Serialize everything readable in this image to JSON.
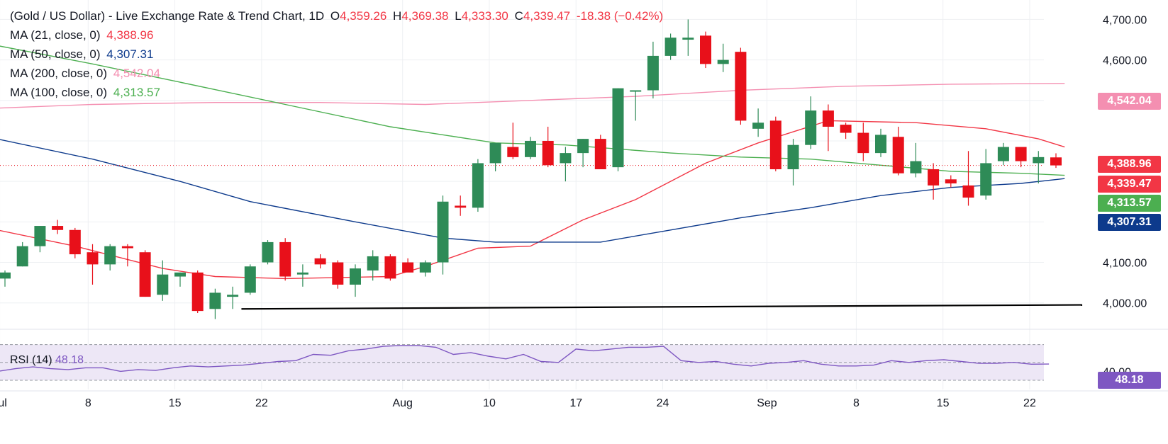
{
  "header": {
    "title": "(Gold / US Dollar) - Live Exchange Rate & Trend Chart, 1D",
    "o_label": "O",
    "o_value": "4,359.26",
    "h_label": "H",
    "h_value": "4,369.38",
    "l_label": "L",
    "l_value": "4,333.30",
    "c_label": "C",
    "c_value": "4,339.47",
    "change": "-18.38 (−0.42%)"
  },
  "ma_legend": [
    {
      "label": "MA (21, close, 0)",
      "value": "4,388.96",
      "color": "#f23645"
    },
    {
      "label": "MA (50, close, 0)",
      "value": "4,307.31",
      "color": "#0d3a8c"
    },
    {
      "label": "MA (200, close, 0)",
      "value": "4,542.04",
      "color": "#f48fb1"
    },
    {
      "label": "MA (100, close, 0)",
      "value": "4,313.57",
      "color": "#4caf50"
    }
  ],
  "rsi": {
    "label": "RSI (14)",
    "value": "48.18",
    "color": "#7e57c2"
  },
  "badges": [
    {
      "value": "4,542.04",
      "color": "#f48fb1"
    },
    {
      "value": "4,388.96",
      "color": "#f23645"
    },
    {
      "value": "4,339.47",
      "color": "#f23645"
    },
    {
      "value": "4,313.57",
      "color": "#4caf50"
    },
    {
      "value": "4,307.31",
      "color": "#0d3a8c"
    },
    {
      "value": "48.18",
      "color": "#7e57c2"
    }
  ],
  "colors": {
    "up": "#2e8b57",
    "down": "#e8101a",
    "grid": "#eef0f3",
    "rsi_band": "#ede7f6",
    "support": "#000000"
  },
  "chart_data": {
    "type": "candlestick",
    "title": "(Gold / US Dollar) - Live Exchange Rate & Trend Chart",
    "interval": "1D",
    "ylim": [
      3940,
      4720
    ],
    "yticks": [
      4000,
      4100,
      4200,
      4300,
      4400,
      4500,
      4600,
      4700
    ],
    "ytick_labels": [
      "4,000.00",
      "4,100.00",
      "4,200.00",
      "",
      "",
      "4,500.00",
      "4,600.00",
      "4,700.00"
    ],
    "xtick_labels": [
      "Jul",
      "8",
      "15",
      "22",
      "Aug",
      "10",
      "17",
      "24",
      "Sep",
      "8",
      "15",
      "22"
    ],
    "xtick_candle_index": [
      -0.3,
      4.75,
      9.7,
      14.65,
      22.7,
      27.65,
      32.6,
      37.55,
      43.5,
      48.6,
      53.55,
      58.5
    ],
    "candles": [
      {
        "o": 4060,
        "h": 4080,
        "l": 4040,
        "c": 4075
      },
      {
        "o": 4090,
        "h": 4150,
        "l": 4090,
        "c": 4140
      },
      {
        "o": 4140,
        "h": 4190,
        "l": 4125,
        "c": 4190
      },
      {
        "o": 4190,
        "h": 4205,
        "l": 4170,
        "c": 4180
      },
      {
        "o": 4180,
        "h": 4185,
        "l": 4110,
        "c": 4120
      },
      {
        "o": 4125,
        "h": 4145,
        "l": 4045,
        "c": 4095
      },
      {
        "o": 4095,
        "h": 4145,
        "l": 4080,
        "c": 4140
      },
      {
        "o": 4140,
        "h": 4145,
        "l": 4090,
        "c": 4135
      },
      {
        "o": 4125,
        "h": 4130,
        "l": 4015,
        "c": 4015
      },
      {
        "o": 4020,
        "h": 4105,
        "l": 4005,
        "c": 4070
      },
      {
        "o": 4065,
        "h": 4075,
        "l": 4040,
        "c": 4075
      },
      {
        "o": 4075,
        "h": 4080,
        "l": 3975,
        "c": 3980
      },
      {
        "o": 3985,
        "h": 4035,
        "l": 3960,
        "c": 4025
      },
      {
        "o": 4015,
        "h": 4040,
        "l": 3985,
        "c": 4020
      },
      {
        "o": 4025,
        "h": 4095,
        "l": 4020,
        "c": 4090
      },
      {
        "o": 4100,
        "h": 4155,
        "l": 4095,
        "c": 4150
      },
      {
        "o": 4150,
        "h": 4160,
        "l": 4055,
        "c": 4065
      },
      {
        "o": 4070,
        "h": 4095,
        "l": 4040,
        "c": 4075
      },
      {
        "o": 4110,
        "h": 4120,
        "l": 4085,
        "c": 4095
      },
      {
        "o": 4100,
        "h": 4105,
        "l": 4035,
        "c": 4045
      },
      {
        "o": 4045,
        "h": 4095,
        "l": 4015,
        "c": 4085
      },
      {
        "o": 4080,
        "h": 4130,
        "l": 4055,
        "c": 4115
      },
      {
        "o": 4115,
        "h": 4120,
        "l": 4055,
        "c": 4060
      },
      {
        "o": 4100,
        "h": 4110,
        "l": 4080,
        "c": 4075
      },
      {
        "o": 4075,
        "h": 4105,
        "l": 4065,
        "c": 4100
      },
      {
        "o": 4100,
        "h": 4265,
        "l": 4070,
        "c": 4250
      },
      {
        "o": 4240,
        "h": 4265,
        "l": 4215,
        "c": 4235
      },
      {
        "o": 4235,
        "h": 4355,
        "l": 4225,
        "c": 4345
      },
      {
        "o": 4345,
        "h": 4395,
        "l": 4325,
        "c": 4395
      },
      {
        "o": 4385,
        "h": 4445,
        "l": 4355,
        "c": 4360
      },
      {
        "o": 4360,
        "h": 4410,
        "l": 4355,
        "c": 4400
      },
      {
        "o": 4400,
        "h": 4435,
        "l": 4335,
        "c": 4340
      },
      {
        "o": 4345,
        "h": 4385,
        "l": 4300,
        "c": 4370
      },
      {
        "o": 4370,
        "h": 4405,
        "l": 4335,
        "c": 4405
      },
      {
        "o": 4405,
        "h": 4415,
        "l": 4330,
        "c": 4330
      },
      {
        "o": 4335,
        "h": 4530,
        "l": 4325,
        "c": 4530
      },
      {
        "o": 4525,
        "h": 4525,
        "l": 4450,
        "c": 4525
      },
      {
        "o": 4525,
        "h": 4645,
        "l": 4505,
        "c": 4610
      },
      {
        "o": 4610,
        "h": 4665,
        "l": 4600,
        "c": 4655
      },
      {
        "o": 4650,
        "h": 4700,
        "l": 4610,
        "c": 4655
      },
      {
        "o": 4660,
        "h": 4670,
        "l": 4580,
        "c": 4590
      },
      {
        "o": 4590,
        "h": 4640,
        "l": 4570,
        "c": 4600
      },
      {
        "o": 4620,
        "h": 4630,
        "l": 4440,
        "c": 4450
      },
      {
        "o": 4430,
        "h": 4480,
        "l": 4410,
        "c": 4445
      },
      {
        "o": 4450,
        "h": 4460,
        "l": 4325,
        "c": 4330
      },
      {
        "o": 4330,
        "h": 4405,
        "l": 4290,
        "c": 4390
      },
      {
        "o": 4390,
        "h": 4510,
        "l": 4380,
        "c": 4475
      },
      {
        "o": 4475,
        "h": 4490,
        "l": 4375,
        "c": 4435
      },
      {
        "o": 4440,
        "h": 4445,
        "l": 4405,
        "c": 4420
      },
      {
        "o": 4420,
        "h": 4445,
        "l": 4350,
        "c": 4370
      },
      {
        "o": 4370,
        "h": 4430,
        "l": 4360,
        "c": 4415
      },
      {
        "o": 4410,
        "h": 4435,
        "l": 4315,
        "c": 4320
      },
      {
        "o": 4320,
        "h": 4395,
        "l": 4310,
        "c": 4350
      },
      {
        "o": 4330,
        "h": 4345,
        "l": 4255,
        "c": 4290
      },
      {
        "o": 4305,
        "h": 4315,
        "l": 4285,
        "c": 4295
      },
      {
        "o": 4290,
        "h": 4375,
        "l": 4240,
        "c": 4260
      },
      {
        "o": 4265,
        "h": 4380,
        "l": 4255,
        "c": 4345
      },
      {
        "o": 4350,
        "h": 4395,
        "l": 4340,
        "c": 4385
      },
      {
        "o": 4385,
        "h": 4380,
        "l": 4335,
        "c": 4350
      },
      {
        "o": 4345,
        "h": 4375,
        "l": 4295,
        "c": 4360
      },
      {
        "o": 4359.26,
        "h": 4369.38,
        "l": 4333.3,
        "c": 4339.47
      }
    ],
    "series": [
      {
        "name": "MA (21, close, 0)",
        "color": "#f23645",
        "points": [
          [
            -1,
            4185
          ],
          [
            4,
            4140
          ],
          [
            9,
            4085
          ],
          [
            12,
            4065
          ],
          [
            16,
            4060
          ],
          [
            22,
            4065
          ],
          [
            24,
            4090
          ],
          [
            27,
            4135
          ],
          [
            30,
            4140
          ],
          [
            33,
            4205
          ],
          [
            36,
            4255
          ],
          [
            40,
            4345
          ],
          [
            43,
            4395
          ],
          [
            47,
            4450
          ],
          [
            52,
            4445
          ],
          [
            56,
            4430
          ],
          [
            59,
            4405
          ],
          [
            60.5,
            4385
          ]
        ]
      },
      {
        "name": "MA (50, close, 0)",
        "color": "#0d3a8c",
        "points": [
          [
            -1,
            4410
          ],
          [
            5,
            4355
          ],
          [
            10,
            4300
          ],
          [
            14,
            4250
          ],
          [
            20,
            4200
          ],
          [
            25,
            4160
          ],
          [
            28,
            4150
          ],
          [
            34,
            4150
          ],
          [
            38,
            4180
          ],
          [
            42,
            4210
          ],
          [
            46,
            4235
          ],
          [
            50,
            4265
          ],
          [
            54,
            4285
          ],
          [
            58,
            4295
          ],
          [
            60.5,
            4307
          ]
        ]
      },
      {
        "name": "MA (200, close, 0)",
        "color": "#f48fb1",
        "points": [
          [
            -1,
            4480
          ],
          [
            5,
            4490
          ],
          [
            12,
            4495
          ],
          [
            18,
            4495
          ],
          [
            24,
            4490
          ],
          [
            30,
            4500
          ],
          [
            36,
            4510
          ],
          [
            42,
            4525
          ],
          [
            48,
            4535
          ],
          [
            54,
            4540
          ],
          [
            60.5,
            4542
          ]
        ]
      },
      {
        "name": "MA (100, close, 0)",
        "color": "#4caf50",
        "points": [
          [
            -1,
            4640
          ],
          [
            5,
            4590
          ],
          [
            10,
            4545
          ],
          [
            16,
            4490
          ],
          [
            22,
            4435
          ],
          [
            28,
            4395
          ],
          [
            32,
            4390
          ],
          [
            38,
            4370
          ],
          [
            42,
            4360
          ],
          [
            46,
            4355
          ],
          [
            50,
            4340
          ],
          [
            54,
            4325
          ],
          [
            58,
            4320
          ],
          [
            60.5,
            4315
          ]
        ]
      }
    ],
    "support_line": [
      [
        13.5,
        3985
      ],
      [
        61.5,
        3995
      ]
    ],
    "rsi": {
      "ylim": [
        30,
        80
      ],
      "upper": 70,
      "mid": 50,
      "lower": 30,
      "tick_labels": [
        {
          "v": 40,
          "t": "40.00"
        }
      ],
      "values": [
        40,
        43,
        45,
        43,
        42,
        44,
        44,
        40,
        42,
        41,
        44,
        46,
        45,
        46,
        47,
        49,
        51,
        52,
        59,
        58,
        63,
        65,
        68,
        69,
        69,
        67,
        59,
        61,
        57,
        54,
        59,
        51,
        50,
        65,
        63,
        65,
        67,
        67,
        68,
        52,
        50,
        51,
        48,
        46,
        49,
        50,
        52,
        48,
        46,
        46,
        47,
        52,
        50,
        52,
        53,
        51,
        49,
        49,
        50,
        48,
        48.18
      ]
    }
  }
}
